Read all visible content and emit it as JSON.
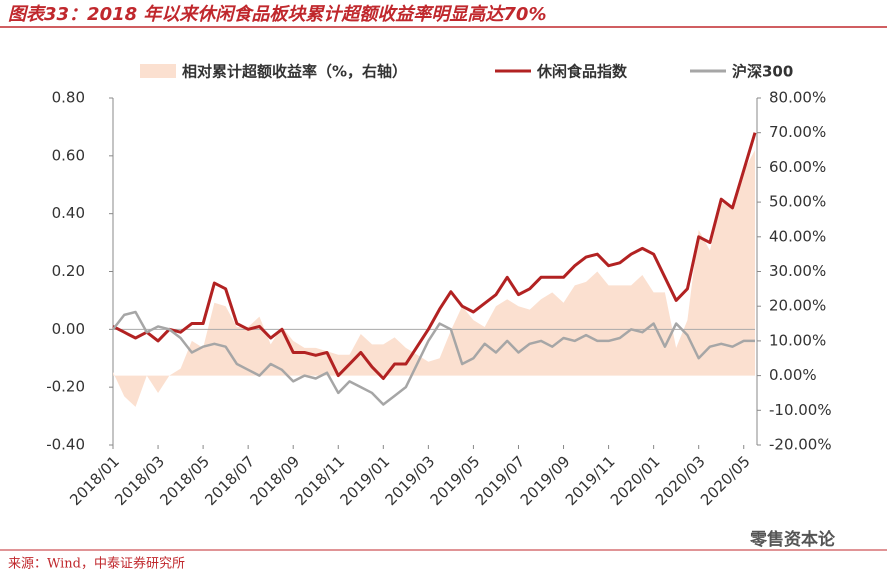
{
  "chart_data": {
    "type": "line",
    "title": "图表33：2018 年以来休闲食品板块累计超额收益率明显高达70%",
    "source": "来源：Wind，中泰证券研究所",
    "watermark": "零售资本论",
    "categories": [
      "2018/01",
      null,
      null,
      null,
      "2018/03",
      null,
      null,
      null,
      "2018/05",
      null,
      null,
      null,
      "2018/07",
      null,
      null,
      null,
      "2018/09",
      null,
      null,
      null,
      "2018/11",
      null,
      null,
      null,
      "2019/01",
      null,
      null,
      null,
      "2019/03",
      null,
      null,
      null,
      "2019/05",
      null,
      null,
      null,
      "2019/07",
      null,
      null,
      null,
      "2019/09",
      null,
      null,
      null,
      "2019/11",
      null,
      null,
      null,
      "2020/01",
      null,
      null,
      null,
      "2020/03",
      null,
      null,
      null,
      "2020/05",
      null
    ],
    "series": [
      {
        "name": "相对累计超额收益率（%，右轴）",
        "color": "#fbe0d0",
        "axis": "y2",
        "kind": "area",
        "values": [
          1,
          -6,
          -9,
          0,
          -5,
          0,
          2,
          10,
          8,
          21,
          20,
          14,
          14,
          17,
          9,
          14,
          10,
          8,
          8,
          7,
          6,
          6,
          12,
          9,
          9,
          11,
          8,
          6,
          4,
          5,
          13,
          20,
          16,
          14,
          20,
          22,
          20,
          19,
          22,
          24,
          21,
          26,
          27,
          30,
          26,
          26,
          26,
          29,
          24,
          24,
          8,
          16,
          42,
          36,
          50,
          48,
          59,
          65
        ]
      },
      {
        "name": "休闲食品指数",
        "color": "#b22222",
        "values": [
          0.01,
          -0.01,
          -0.03,
          -0.01,
          -0.04,
          0.0,
          -0.01,
          0.02,
          0.02,
          0.16,
          0.14,
          0.02,
          0.0,
          0.01,
          -0.03,
          0.0,
          -0.08,
          -0.08,
          -0.09,
          -0.08,
          -0.16,
          -0.12,
          -0.08,
          -0.13,
          -0.17,
          -0.12,
          -0.12,
          -0.06,
          0.0,
          0.07,
          0.13,
          0.08,
          0.06,
          0.09,
          0.12,
          0.18,
          0.12,
          0.14,
          0.18,
          0.18,
          0.18,
          0.22,
          0.25,
          0.26,
          0.22,
          0.23,
          0.26,
          0.28,
          0.26,
          0.18,
          0.1,
          0.14,
          0.32,
          0.3,
          0.45,
          0.42,
          0.55,
          0.68
        ]
      },
      {
        "name": "沪深300",
        "color": "#a6a6a6",
        "values": [
          0.0,
          0.05,
          0.06,
          -0.01,
          0.01,
          0.0,
          -0.03,
          -0.08,
          -0.06,
          -0.05,
          -0.06,
          -0.12,
          -0.14,
          -0.16,
          -0.12,
          -0.14,
          -0.18,
          -0.16,
          -0.17,
          -0.15,
          -0.22,
          -0.18,
          -0.2,
          -0.22,
          -0.26,
          -0.23,
          -0.2,
          -0.12,
          -0.04,
          0.02,
          0.0,
          -0.12,
          -0.1,
          -0.05,
          -0.08,
          -0.04,
          -0.08,
          -0.05,
          -0.04,
          -0.06,
          -0.03,
          -0.04,
          -0.02,
          -0.04,
          -0.04,
          -0.03,
          0.0,
          -0.01,
          0.02,
          -0.06,
          0.02,
          -0.02,
          -0.1,
          -0.06,
          -0.05,
          -0.06,
          -0.04,
          -0.04
        ]
      }
    ],
    "ylim": [
      -0.4,
      0.8
    ],
    "yticks": [
      {
        "value": 0.8,
        "label": "0.80"
      },
      {
        "value": 0.6,
        "label": "0.60"
      },
      {
        "value": 0.4,
        "label": "0.40"
      },
      {
        "value": 0.2,
        "label": "0.20"
      },
      {
        "value": 0,
        "label": "0.00"
      },
      {
        "value": -0.2,
        "label": "-0.20"
      },
      {
        "value": -0.4,
        "label": "-0.40"
      }
    ],
    "y2lim": [
      -20,
      80
    ],
    "y2ticks": [
      {
        "value": 80,
        "label": "80.00%"
      },
      {
        "value": 70,
        "label": "70.00%"
      },
      {
        "value": 60,
        "label": "60.00%"
      },
      {
        "value": 50,
        "label": "50.00%"
      },
      {
        "value": 40,
        "label": "40.00%"
      },
      {
        "value": 30,
        "label": "30.00%"
      },
      {
        "value": 20,
        "label": "20.00%"
      },
      {
        "value": 10,
        "label": "10.00%"
      },
      {
        "value": 0,
        "label": "0.00%"
      },
      {
        "value": -10,
        "label": "-10.00%"
      },
      {
        "value": -20,
        "label": "-20.00%"
      }
    ],
    "legend": "top"
  }
}
